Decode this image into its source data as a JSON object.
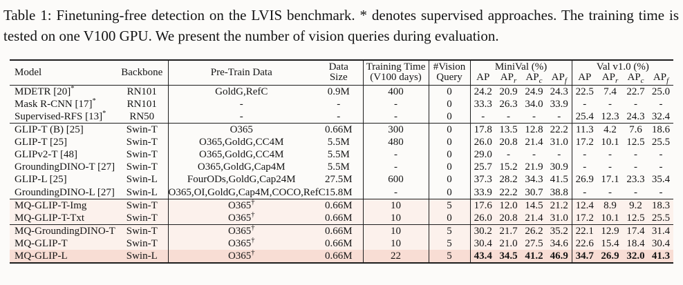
{
  "caption": "Table 1: Finetuning-free detection on the LVIS benchmark. * denotes supervised approaches. The training time is tested on one V100 GPU. We present the number of vision queries during evaluation.",
  "colors": {
    "row_pink_light": "#fcf1ec",
    "row_pink_strong": "#f8ddd4",
    "rule": "#1c1c1c"
  },
  "table": {
    "headers": {
      "model": "Model",
      "backbone": "Backbone",
      "pretrain": "Pre-Train Data",
      "data_size": "Data\nSize",
      "training_time": "Training Time\n(V100 days)",
      "vision_query": "#Vision\nQuery",
      "minival": "MiniVal (%)",
      "val": "Val v1.0 (%)",
      "ap_cols": [
        {
          "base": "AP",
          "sub": ""
        },
        {
          "base": "AP",
          "sub": "r"
        },
        {
          "base": "AP",
          "sub": "c"
        },
        {
          "base": "AP",
          "sub": "f"
        }
      ]
    },
    "groups": [
      {
        "highlight": "none",
        "rows": [
          {
            "model": "MDETR [20]",
            "model_sup": "*",
            "backbone": "RN101",
            "pretrain": "GoldG,RefC",
            "pretrain_sup": "",
            "data_size": "0.9M",
            "training_time": "400",
            "vision_query": "0",
            "minival": [
              "24.2",
              "20.9",
              "24.9",
              "24.3"
            ],
            "val": [
              "22.5",
              "7.4",
              "22.7",
              "25.0"
            ],
            "bold": false,
            "strong": false
          },
          {
            "model": "Mask R-CNN [17]",
            "model_sup": "*",
            "backbone": "RN101",
            "pretrain": "-",
            "pretrain_sup": "",
            "data_size": "-",
            "training_time": "-",
            "vision_query": "0",
            "minival": [
              "33.3",
              "26.3",
              "34.0",
              "33.9"
            ],
            "val": [
              "-",
              "-",
              "-",
              "-"
            ],
            "bold": false,
            "strong": false
          },
          {
            "model": "Supervised-RFS [13]",
            "model_sup": "*",
            "backbone": "RN50",
            "pretrain": "-",
            "pretrain_sup": "",
            "data_size": "-",
            "training_time": "-",
            "vision_query": "0",
            "minival": [
              "-",
              "-",
              "-",
              "-"
            ],
            "val": [
              "25.4",
              "12.3",
              "24.3",
              "32.4"
            ],
            "bold": false,
            "strong": false
          }
        ]
      },
      {
        "highlight": "none",
        "rows": [
          {
            "model": "GLIP-T (B) [25]",
            "model_sup": "",
            "backbone": "Swin-T",
            "pretrain": "O365",
            "pretrain_sup": "",
            "data_size": "0.66M",
            "training_time": "300",
            "vision_query": "0",
            "minival": [
              "17.8",
              "13.5",
              "12.8",
              "22.2"
            ],
            "val": [
              "11.3",
              "4.2",
              "7.6",
              "18.6"
            ],
            "bold": false,
            "strong": false
          },
          {
            "model": "GLIP-T [25]",
            "model_sup": "",
            "backbone": "Swin-T",
            "pretrain": "O365,GoldG,CC4M",
            "pretrain_sup": "",
            "data_size": "5.5M",
            "training_time": "480",
            "vision_query": "0",
            "minival": [
              "26.0",
              "20.8",
              "21.4",
              "31.0"
            ],
            "val": [
              "17.2",
              "10.1",
              "12.5",
              "25.5"
            ],
            "bold": false,
            "strong": false
          },
          {
            "model": "GLIPv2-T [48]",
            "model_sup": "",
            "backbone": "Swin-T",
            "pretrain": "O365,GoldG,CC4M",
            "pretrain_sup": "",
            "data_size": "5.5M",
            "training_time": "-",
            "vision_query": "0",
            "minival": [
              "29.0",
              "-",
              "-",
              "-"
            ],
            "val": [
              "-",
              "-",
              "-",
              "-"
            ],
            "bold": false,
            "strong": false
          },
          {
            "model": "GroundingDINO-T [27]",
            "model_sup": "",
            "backbone": "Swin-T",
            "pretrain": "O365,GoldG,Cap4M",
            "pretrain_sup": "",
            "data_size": "5.5M",
            "training_time": "-",
            "vision_query": "0",
            "minival": [
              "25.7",
              "15.2",
              "21.9",
              "30.9"
            ],
            "val": [
              "-",
              "-",
              "-",
              "-"
            ],
            "bold": false,
            "strong": false
          },
          {
            "model": "GLIP-L [25]",
            "model_sup": "",
            "backbone": "Swin-L",
            "pretrain": "FourODs,GoldG,Cap24M",
            "pretrain_sup": "",
            "data_size": "27.5M",
            "training_time": "600",
            "vision_query": "0",
            "minival": [
              "37.3",
              "28.2",
              "34.3",
              "41.5"
            ],
            "val": [
              "26.9",
              "17.1",
              "23.3",
              "35.4"
            ],
            "bold": false,
            "strong": false
          },
          {
            "model": "GroundingDINO-L [27]",
            "model_sup": "",
            "backbone": "Swin-L",
            "pretrain": "O365,OI,GoldG,Cap4M,COCO,RefC",
            "pretrain_sup": "",
            "data_size": "15.8M",
            "training_time": "-",
            "vision_query": "0",
            "minival": [
              "33.9",
              "22.2",
              "30.7",
              "38.8"
            ],
            "val": [
              "-",
              "-",
              "-",
              "-"
            ],
            "bold": false,
            "strong": false
          }
        ]
      },
      {
        "highlight": "pink",
        "rows": [
          {
            "model": "MQ-GLIP-T-Img",
            "model_sup": "",
            "backbone": "Swin-T",
            "pretrain": "O365",
            "pretrain_sup": "†",
            "data_size": "0.66M",
            "training_time": "10",
            "vision_query": "5",
            "minival": [
              "17.6",
              "12.0",
              "14.5",
              "21.2"
            ],
            "val": [
              "12.4",
              "8.9",
              "9.2",
              "18.3"
            ],
            "bold": false,
            "strong": false
          },
          {
            "model": "MQ-GLIP-T-Txt",
            "model_sup": "",
            "backbone": "Swin-T",
            "pretrain": "O365",
            "pretrain_sup": "†",
            "data_size": "0.66M",
            "training_time": "10",
            "vision_query": "0",
            "minival": [
              "26.0",
              "20.8",
              "21.4",
              "31.0"
            ],
            "val": [
              "17.2",
              "10.1",
              "12.5",
              "25.5"
            ],
            "bold": false,
            "strong": false
          }
        ]
      },
      {
        "highlight": "pink",
        "rows": [
          {
            "model": "MQ-GroundingDINO-T",
            "model_sup": "",
            "backbone": "Swin-T",
            "pretrain": "O365",
            "pretrain_sup": "†",
            "data_size": "0.66M",
            "training_time": "10",
            "vision_query": "5",
            "minival": [
              "30.2",
              "21.7",
              "26.2",
              "35.2"
            ],
            "val": [
              "22.1",
              "12.9",
              "17.4",
              "31.4"
            ],
            "bold": false,
            "strong": false
          },
          {
            "model": "MQ-GLIP-T",
            "model_sup": "",
            "backbone": "Swin-T",
            "pretrain": "O365",
            "pretrain_sup": "†",
            "data_size": "0.66M",
            "training_time": "10",
            "vision_query": "5",
            "minival": [
              "30.4",
              "21.0",
              "27.5",
              "34.6"
            ],
            "val": [
              "22.6",
              "15.4",
              "18.4",
              "30.4"
            ],
            "bold": false,
            "strong": false
          },
          {
            "model": "MQ-GLIP-L",
            "model_sup": "",
            "backbone": "Swin-L",
            "pretrain": "O365",
            "pretrain_sup": "†",
            "data_size": "0.66M",
            "training_time": "22",
            "vision_query": "5",
            "minival": [
              "43.4",
              "34.5",
              "41.2",
              "46.9"
            ],
            "val": [
              "34.7",
              "26.9",
              "32.0",
              "41.3"
            ],
            "bold": true,
            "strong": true
          }
        ]
      }
    ]
  }
}
